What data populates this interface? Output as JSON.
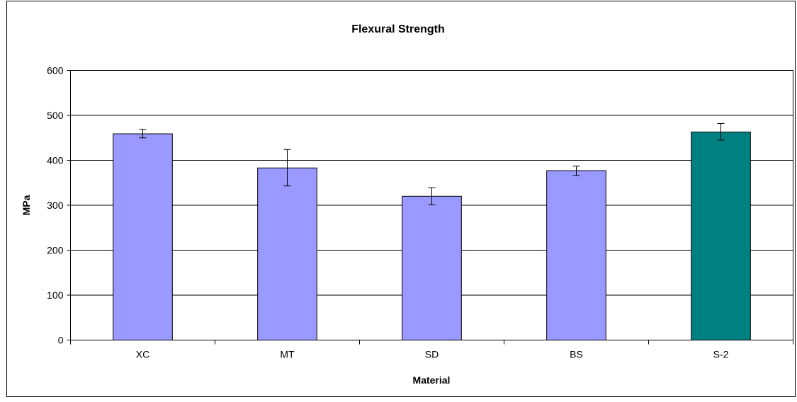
{
  "chart_data": {
    "type": "bar",
    "title": "Flexural Strength",
    "xlabel": "Material",
    "ylabel": "MPa",
    "categories": [
      "XC",
      "MT",
      "SD",
      "BS",
      "S-2"
    ],
    "values": [
      459,
      383,
      320,
      377,
      463
    ],
    "error_low": [
      450,
      343,
      301,
      366,
      445
    ],
    "error_high": [
      469,
      424,
      339,
      387,
      482
    ],
    "bar_colors": [
      "#9999ff",
      "#9999ff",
      "#9999ff",
      "#9999ff",
      "#008080"
    ],
    "ylim": [
      0,
      600
    ],
    "yticks": [
      0,
      100,
      200,
      300,
      400,
      500,
      600
    ],
    "grid": true,
    "legend": "none"
  }
}
